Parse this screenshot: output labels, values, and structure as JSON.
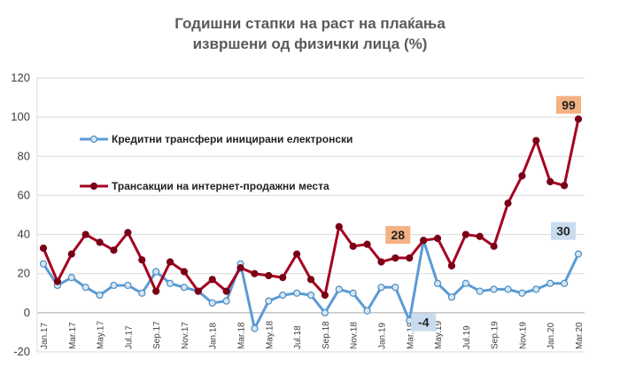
{
  "chart_data": {
    "type": "line",
    "title_line1": "Годишни стапки на раст на плаќања",
    "title_line2": "извршени од физички лица (%)",
    "ylim": [
      -20,
      120
    ],
    "yticks": [
      -20,
      0,
      20,
      40,
      60,
      80,
      100,
      120
    ],
    "x": [
      "Jan.17",
      "Feb.17",
      "Mar.17",
      "Apr.17",
      "May.17",
      "Jun.17",
      "Jul.17",
      "Aug.17",
      "Sep.17",
      "Oct.17",
      "Nov.17",
      "Dec.17",
      "Jan.18",
      "Feb.18",
      "Mar.18",
      "Apr.18",
      "May.18",
      "Jun.18",
      "Jul.18",
      "Aug.18",
      "Sep.18",
      "Oct.18",
      "Nov.18",
      "Dec.18",
      "Jan.19",
      "Feb.19",
      "Mar.19",
      "Apr.19",
      "May.19",
      "Jun.19",
      "Jul.19",
      "Aug.19",
      "Sep.19",
      "Oct.19",
      "Nov.19",
      "Dec.19",
      "Jan.20",
      "Feb.20",
      "Mar.20"
    ],
    "xtick_labels": [
      "Jan.17",
      "Mar.17",
      "May.17",
      "Jul.17",
      "Sep.17",
      "Nov.17",
      "Jan.18",
      "Mar.18",
      "May.18",
      "Jul.18",
      "Sep.18",
      "Nov.18",
      "Jan.19",
      "Mar.19",
      "May.19",
      "Jul.19",
      "Sep.19",
      "Nov.19",
      "Jan.20",
      "Mar.20"
    ],
    "grid": true,
    "series": [
      {
        "name": "Кредитни трансфери иницирани електронски",
        "color": "#5b9bd5",
        "values": [
          25,
          14,
          18,
          13,
          9,
          14,
          14,
          10,
          21,
          15,
          13,
          11,
          5,
          6,
          25,
          -8,
          6,
          9,
          10,
          9,
          0,
          12,
          10,
          1,
          13,
          13,
          -4,
          37,
          15,
          8,
          15,
          11,
          12,
          12,
          10,
          12,
          15,
          15,
          30
        ]
      },
      {
        "name": "Трансакции на интернет-продажни места",
        "color": "#a50021",
        "values": [
          33,
          16,
          30,
          40,
          36,
          32,
          41,
          27,
          11,
          26,
          21,
          11,
          17,
          11,
          23,
          20,
          19,
          18,
          30,
          17,
          9,
          44,
          34,
          35,
          26,
          28,
          28,
          37,
          38,
          24,
          40,
          39,
          34,
          56,
          70,
          88,
          67,
          65,
          99
        ]
      }
    ],
    "annotations": [
      {
        "series": 0,
        "index": 26,
        "label": "-4",
        "bg": "#c9dcef"
      },
      {
        "series": 0,
        "index": 38,
        "label": "30",
        "bg": "#c9dcef"
      },
      {
        "series": 1,
        "index": 26,
        "label": "28",
        "bg": "#f4b183"
      },
      {
        "series": 1,
        "index": 38,
        "label": "99",
        "bg": "#f4b183"
      }
    ],
    "legend_position": "upper-left"
  }
}
